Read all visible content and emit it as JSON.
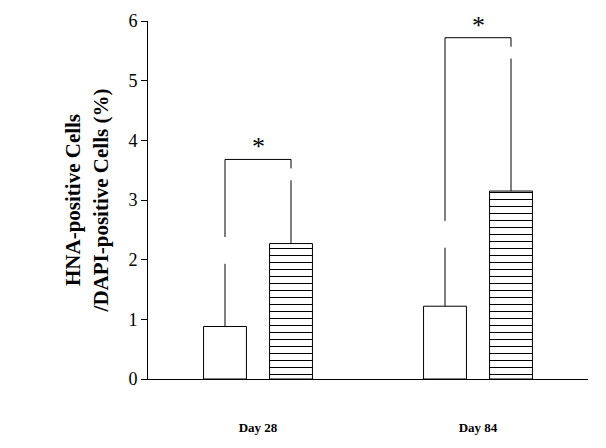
{
  "chart_data": {
    "type": "bar",
    "y_label": "HNA-positive Cells\n/DAPI-positive Cells (%)",
    "categories": [
      "Day 28",
      "Day 84"
    ],
    "series": [
      {
        "color": "#ffffff",
        "values": [
          0.88,
          1.22
        ],
        "errors": [
          1.05,
          0.98
        ]
      },
      {
        "color": "#ffffff",
        "marker": "horizontal_lines",
        "values": [
          2.27,
          3.15
        ],
        "errors": [
          1.06,
          2.22
        ]
      }
    ],
    "ylim": [
      0,
      6
    ],
    "yticks": [
      0,
      1,
      2,
      3,
      4,
      5,
      6
    ],
    "grid": false,
    "annotations": [
      {
        "text": "*",
        "category": "Day 28"
      },
      {
        "text": "*",
        "category": "Day 84"
      }
    ]
  }
}
